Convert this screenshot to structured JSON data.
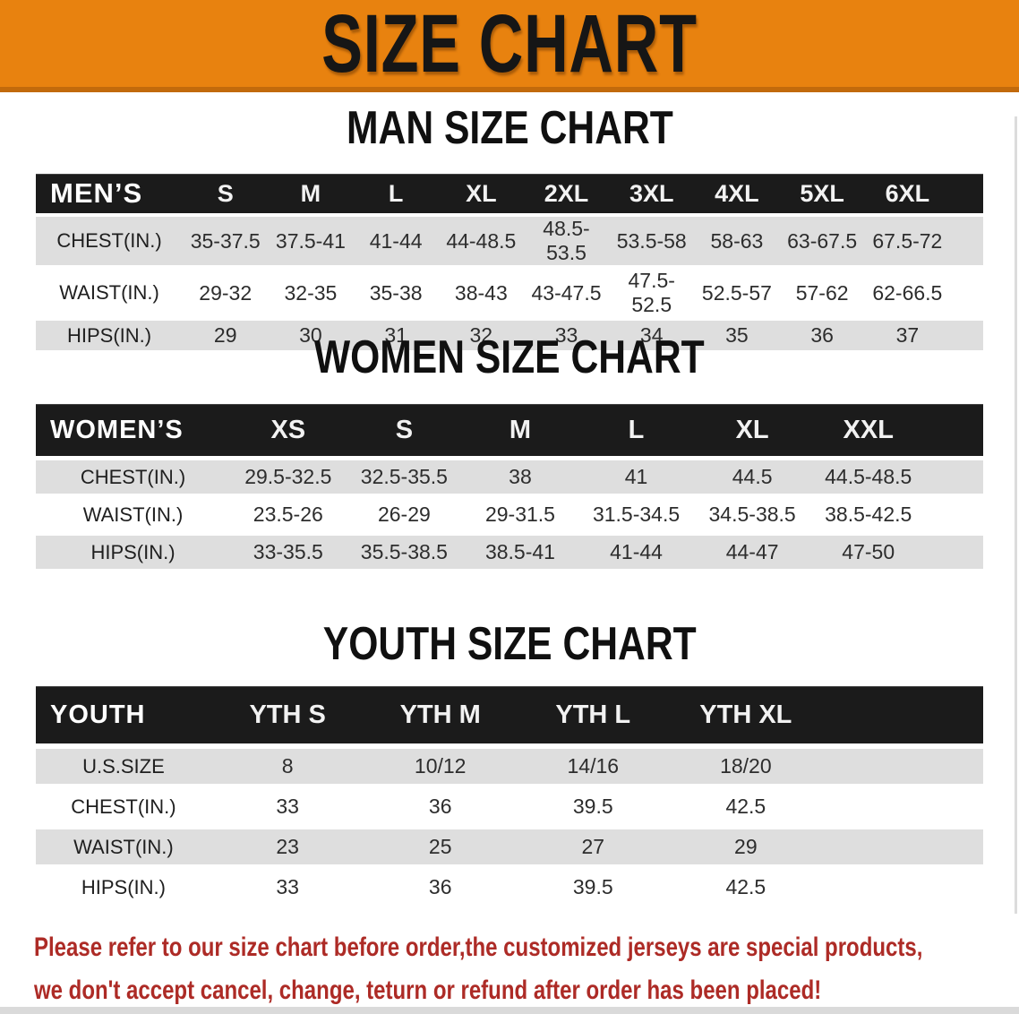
{
  "banner": {
    "title": "SIZE CHART",
    "bg_color": "#E8820F",
    "border_color": "#C26A0B"
  },
  "colors": {
    "table_header_bg": "#1B1B1B",
    "row_alt": "#DEDEDE",
    "note_red": "#AD2B26"
  },
  "sections": [
    {
      "heading": "MAN SIZE CHART",
      "table": {
        "label": "MEN’S",
        "sizes": [
          "S",
          "M",
          "L",
          "XL",
          "2XL",
          "3XL",
          "4XL",
          "5XL",
          "6XL"
        ],
        "rows": [
          {
            "label": "CHEST(IN.)",
            "values": [
              "35-37.5",
              "37.5-41",
              "41-44",
              "44-48.5",
              "48.5-53.5",
              "53.5-58",
              "58-63",
              "63-67.5",
              "67.5-72"
            ]
          },
          {
            "label": "WAIST(IN.)",
            "values": [
              "29-32",
              "32-35",
              "35-38",
              "38-43",
              "43-47.5",
              "47.5-52.5",
              "52.5-57",
              "57-62",
              "62-66.5"
            ]
          },
          {
            "label": "HIPS(IN.)",
            "values": [
              "29",
              "30",
              "31",
              "32",
              "33",
              "34",
              "35",
              "36",
              "37"
            ]
          }
        ]
      }
    },
    {
      "heading": "WOMEN SIZE CHART",
      "table": {
        "label": "WOMEN’S",
        "sizes": [
          "XS",
          "S",
          "M",
          "L",
          "XL",
          "XXL"
        ],
        "rows": [
          {
            "label": "CHEST(IN.)",
            "values": [
              "29.5-32.5",
              "32.5-35.5",
              "38",
              "41",
              "44.5",
              "44.5-48.5"
            ]
          },
          {
            "label": "WAIST(IN.)",
            "values": [
              "23.5-26",
              "26-29",
              "29-31.5",
              "31.5-34.5",
              "34.5-38.5",
              "38.5-42.5"
            ]
          },
          {
            "label": "HIPS(IN.)",
            "values": [
              "33-35.5",
              "35.5-38.5",
              "38.5-41",
              "41-44",
              "44-47",
              "47-50"
            ]
          }
        ]
      }
    },
    {
      "heading": "YOUTH SIZE CHART",
      "table": {
        "label": "YOUTH",
        "sizes": [
          "YTH S",
          "YTH M",
          "YTH L",
          "YTH XL"
        ],
        "rows": [
          {
            "label": "U.S.SIZE",
            "values": [
              "8",
              "10/12",
              "14/16",
              "18/20"
            ]
          },
          {
            "label": "CHEST(IN.)",
            "values": [
              "33",
              "36",
              "39.5",
              "42.5"
            ]
          },
          {
            "label": "WAIST(IN.)",
            "values": [
              "23",
              "25",
              "27",
              "29"
            ]
          },
          {
            "label": "HIPS(IN.)",
            "values": [
              "33",
              "36",
              "39.5",
              "42.5"
            ]
          }
        ]
      }
    }
  ],
  "footer_note": {
    "line1": "Please refer to our size chart before order,the customized jerseys are special products,",
    "line2": "we don't accept cancel, change, teturn or refund after order has been placed!"
  }
}
